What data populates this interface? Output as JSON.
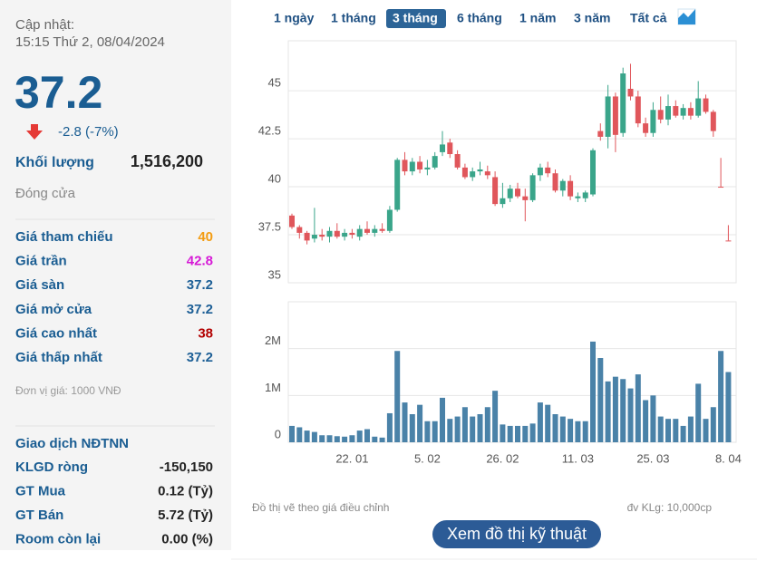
{
  "header": {
    "update_label": "Cập nhật:",
    "update_time": "15:15 Thứ 2, 08/04/2024"
  },
  "quote": {
    "price": "37.2",
    "change": "-2.8 (-7%)",
    "volume_label": "Khối lượng",
    "volume": "1,516,200",
    "status": "Đóng cửa"
  },
  "prices": {
    "rows": [
      {
        "label": "Giá tham chiếu",
        "value": "40",
        "color": "#f39c12"
      },
      {
        "label": "Giá trần",
        "value": "42.8",
        "color": "#d61ad6"
      },
      {
        "label": "Giá sàn",
        "value": "37.2",
        "color": "#1d5f96"
      },
      {
        "label": "Giá mở cửa",
        "value": "37.2",
        "color": "#1d5f96"
      },
      {
        "label": "Giá cao nhất",
        "value": "38",
        "color": "#b30000"
      },
      {
        "label": "Giá thấp nhất",
        "value": "37.2",
        "color": "#1d5f96"
      }
    ],
    "unit_note": "Đơn vị giá: 1000 VNĐ"
  },
  "foreign": {
    "title": "Giao dịch NĐTNN",
    "rows": [
      {
        "label": "KLGD ròng",
        "value": "-150,150"
      },
      {
        "label": "GT Mua",
        "value": "0.12 (Tỷ)"
      },
      {
        "label": "GT Bán",
        "value": "5.72 (Tỷ)"
      },
      {
        "label": "Room còn lại",
        "value": "0.00 (%)"
      }
    ]
  },
  "tabs": {
    "items": [
      "1 ngày",
      "1 tháng",
      "3 tháng",
      "6 tháng",
      "1 năm",
      "3 năm",
      "Tất cả"
    ],
    "active": 2
  },
  "chart_data": [
    {
      "type": "candlestick",
      "up_color": "#3aa58a",
      "down_color": "#e0565b",
      "grid": true,
      "open": [
        38.5,
        37.9,
        37.6,
        37.3,
        37.5,
        37.4,
        37.7,
        37.4,
        37.6,
        37.4,
        37.8,
        37.6,
        37.8,
        37.7,
        38.8,
        41.4,
        40.8,
        41.3,
        40.9,
        41.0,
        41.8,
        42.3,
        41.7,
        41.0,
        40.5,
        40.8,
        40.8,
        40.5,
        39.1,
        39.4,
        39.9,
        39.5,
        39.3,
        40.6,
        41.0,
        40.7,
        39.8,
        40.3,
        39.4,
        39.4,
        39.6,
        42.9,
        42.6,
        44.7,
        42.8,
        45.1,
        44.7,
        43.3,
        42.8,
        44.0,
        43.5,
        44.2,
        43.7,
        44.1,
        43.7,
        44.6,
        43.9,
        40.0,
        37.2
      ],
      "high": [
        38.6,
        38.0,
        37.7,
        38.9,
        37.8,
        37.9,
        38.1,
        37.8,
        37.8,
        38.0,
        38.2,
        38.0,
        38.1,
        39.0,
        41.5,
        41.8,
        41.5,
        41.6,
        41.4,
        41.8,
        42.9,
        42.5,
        41.9,
        41.2,
        41.0,
        41.3,
        41.1,
        40.8,
        40.2,
        40.1,
        40.2,
        39.9,
        40.7,
        41.2,
        41.3,
        40.9,
        40.4,
        40.6,
        39.7,
        39.8,
        42.0,
        43.3,
        45.3,
        44.9,
        46.2,
        46.4,
        45.0,
        43.6,
        44.4,
        44.7,
        44.8,
        44.5,
        44.3,
        44.4,
        45.5,
        44.8,
        44.0,
        41.5,
        38.0
      ],
      "low": [
        37.8,
        37.3,
        37.0,
        37.1,
        37.2,
        37.1,
        37.3,
        37.2,
        37.3,
        37.2,
        37.5,
        37.4,
        37.6,
        37.6,
        38.7,
        40.6,
        40.6,
        40.7,
        40.6,
        40.9,
        41.6,
        41.5,
        40.9,
        40.4,
        40.3,
        40.6,
        40.4,
        39.0,
        38.9,
        39.2,
        39.4,
        38.2,
        39.2,
        40.3,
        40.5,
        39.7,
        39.5,
        39.3,
        39.2,
        39.2,
        39.5,
        42.4,
        42.0,
        41.8,
        42.6,
        44.5,
        43.1,
        42.6,
        42.6,
        43.3,
        43.2,
        43.6,
        43.5,
        43.5,
        43.6,
        43.8,
        42.6,
        40.0,
        37.2
      ],
      "close": [
        37.9,
        37.6,
        37.2,
        37.5,
        37.4,
        37.7,
        37.4,
        37.6,
        37.5,
        37.8,
        37.6,
        37.8,
        37.7,
        38.8,
        41.4,
        40.8,
        41.3,
        40.9,
        41.0,
        41.6,
        42.2,
        41.7,
        41.0,
        40.5,
        40.8,
        40.9,
        40.6,
        39.1,
        39.4,
        39.9,
        39.5,
        39.3,
        40.6,
        41.0,
        40.7,
        39.8,
        40.3,
        39.5,
        39.5,
        39.7,
        41.9,
        42.6,
        44.7,
        42.7,
        45.9,
        44.7,
        43.3,
        42.8,
        44.0,
        43.5,
        44.2,
        43.7,
        44.1,
        43.7,
        44.6,
        43.9,
        42.9,
        40.0,
        37.2
      ],
      "ylim": [
        35,
        47.6
      ],
      "yticks": [
        35,
        37.5,
        40,
        42.5,
        45
      ]
    },
    {
      "type": "bar",
      "color": "#4a82a8",
      "grid": true,
      "categories": [
        null,
        null,
        null,
        null,
        null,
        null,
        null,
        null,
        "22. 01",
        null,
        null,
        null,
        null,
        null,
        null,
        null,
        null,
        null,
        "5. 02",
        null,
        null,
        null,
        null,
        null,
        null,
        null,
        null,
        null,
        "26. 02",
        null,
        null,
        null,
        null,
        null,
        null,
        null,
        null,
        null,
        "11. 03",
        null,
        null,
        null,
        null,
        null,
        null,
        null,
        null,
        null,
        "25. 03",
        null,
        null,
        null,
        null,
        null,
        null,
        null,
        null,
        null,
        "8. 04"
      ],
      "values": [
        350000,
        320000,
        250000,
        220000,
        150000,
        150000,
        130000,
        120000,
        150000,
        250000,
        280000,
        120000,
        100000,
        620000,
        1950000,
        850000,
        600000,
        800000,
        450000,
        450000,
        950000,
        500000,
        550000,
        750000,
        550000,
        600000,
        750000,
        1100000,
        380000,
        350000,
        350000,
        350000,
        400000,
        850000,
        800000,
        600000,
        550000,
        500000,
        450000,
        450000,
        2150000,
        1800000,
        1300000,
        1400000,
        1350000,
        1150000,
        1450000,
        900000,
        1000000,
        550000,
        500000,
        500000,
        350000,
        550000,
        1250000,
        500000,
        750000,
        1950000,
        1500000
      ],
      "ylim": [
        0,
        3000000
      ],
      "yticks": [
        0,
        {
          "value": 1000000,
          "label": "1M"
        },
        {
          "value": 2000000,
          "label": "2M"
        }
      ]
    }
  ],
  "notes": {
    "left": "Đồ thị vẽ theo giá điều chỉnh",
    "right": "đv KLg: 10,000cp"
  },
  "button": "Xem đồ thị kỹ thuật"
}
